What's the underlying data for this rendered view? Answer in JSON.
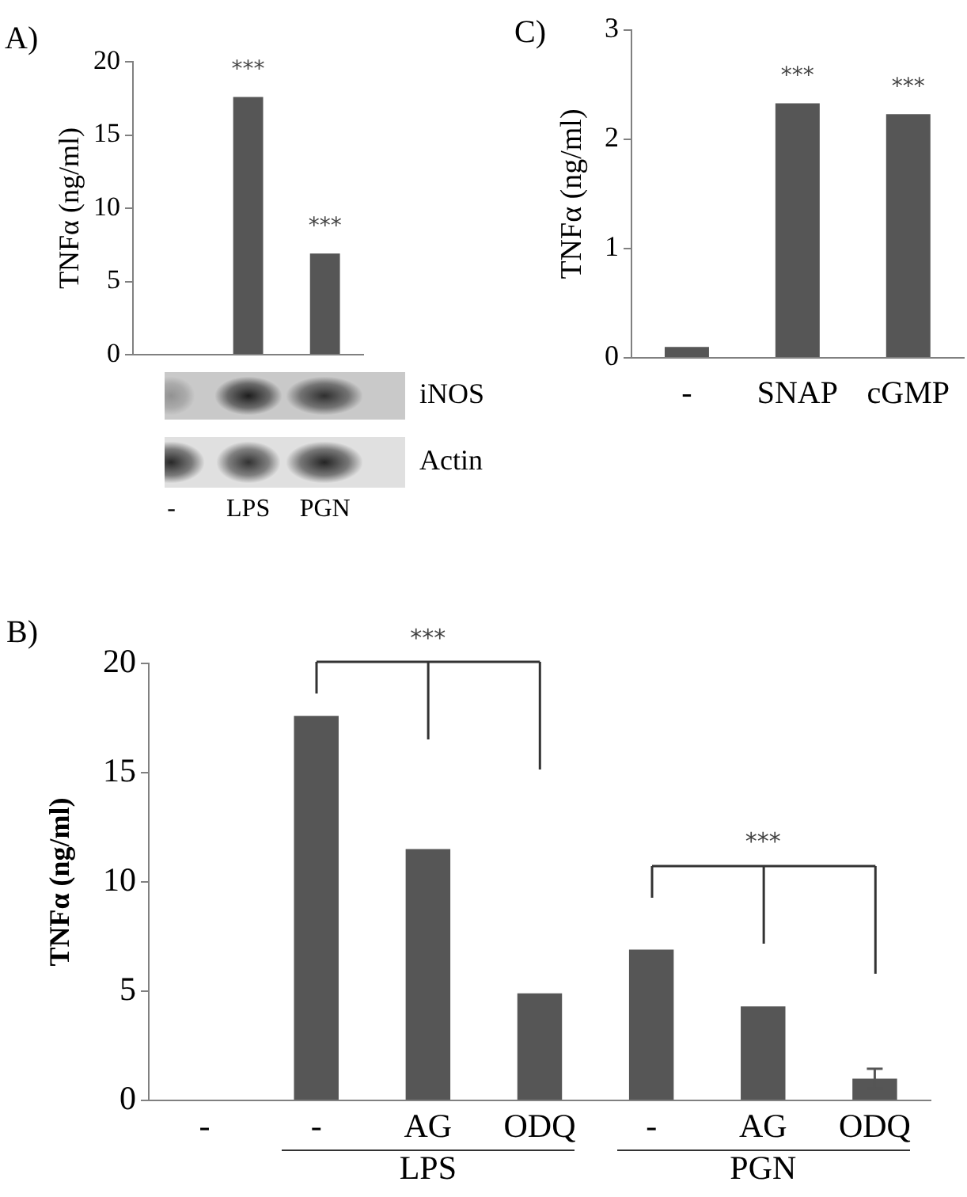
{
  "chart_data": [
    {
      "type": "bar",
      "title": "A)",
      "ylabel": "TNFα (ng/ml)",
      "categories": [
        "-",
        "LPS",
        "PGN"
      ],
      "values": [
        0,
        17.6,
        6.9
      ],
      "color": "#565656",
      "ylim": [
        0,
        20
      ],
      "yticks": [
        0,
        5,
        10,
        15,
        20
      ],
      "annotations": [
        {
          "text": "***",
          "x": "LPS",
          "y": 17.6
        },
        {
          "text": "***",
          "x": "PGN",
          "y": 6.9
        },
        "iNOS",
        "Actin"
      ]
    },
    {
      "type": "bar",
      "title": "C)",
      "ylabel": "TNFα (ng/ml)",
      "categories": [
        "-",
        "SNAP",
        "cGMP"
      ],
      "values": [
        0.1,
        2.33,
        2.23
      ],
      "color": "#565656",
      "ylim": [
        0,
        3
      ],
      "yticks": [
        0,
        1,
        2,
        3
      ],
      "annotations": [
        {
          "text": "***",
          "x": "SNAP",
          "y": 2.33
        },
        {
          "text": "***",
          "x": "cGMP",
          "y": 2.23
        }
      ]
    },
    {
      "type": "bar",
      "title": "B)",
      "ylabel": "TNFα (ng/ml)",
      "categories": [
        "-",
        "-",
        "AG",
        "ODQ",
        "-",
        "AG",
        "ODQ"
      ],
      "values": [
        0,
        17.6,
        11.5,
        4.9,
        6.9,
        4.3,
        1.0
      ],
      "errors": [
        null,
        null,
        null,
        null,
        null,
        null,
        0.45
      ],
      "color": "#565656",
      "ylim": [
        0,
        20
      ],
      "yticks": [
        0,
        5,
        10,
        15,
        20
      ],
      "annotations": [
        "***",
        "***",
        "LPS",
        "PGN"
      ]
    }
  ]
}
